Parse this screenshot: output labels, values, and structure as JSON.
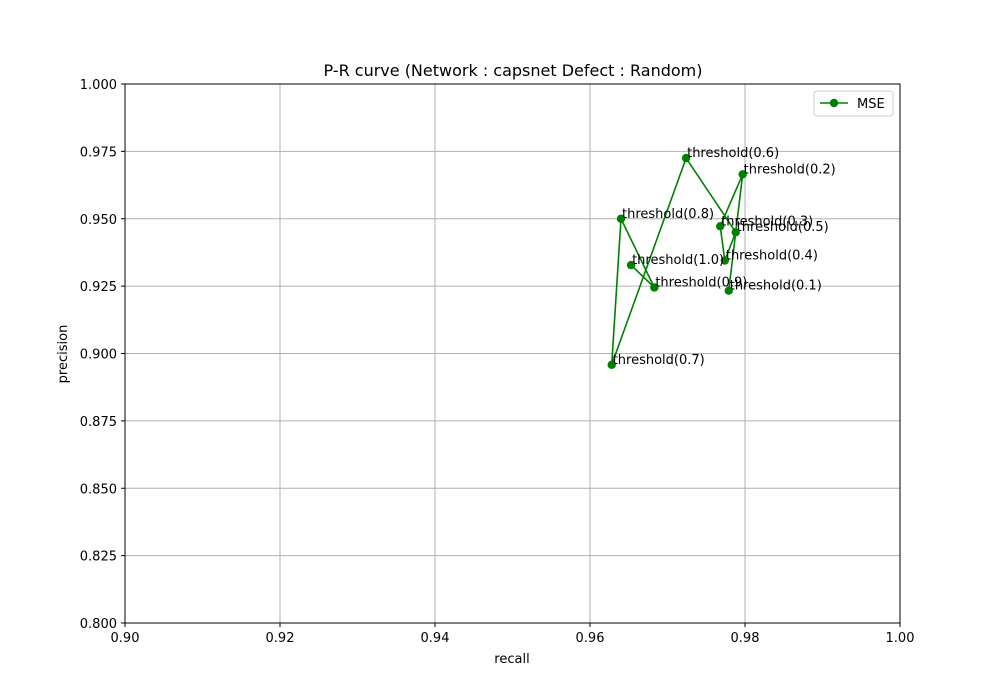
{
  "chart_data": {
    "type": "line",
    "title": "P-R curve (Network : capsnet Defect : Random)",
    "xlabel": "recall",
    "ylabel": "precision",
    "xlim": [
      0.9,
      1.0
    ],
    "ylim": [
      0.8,
      1.0
    ],
    "xticks": [
      "0.90",
      "0.92",
      "0.94",
      "0.96",
      "0.98",
      "1.00"
    ],
    "yticks": [
      "0.800",
      "0.825",
      "0.850",
      "0.875",
      "0.900",
      "0.925",
      "0.950",
      "0.975",
      "1.000"
    ],
    "grid": true,
    "legend_position": "top-right",
    "series": [
      {
        "name": "MSE",
        "color": "#008000",
        "marker": "circle",
        "points": [
          {
            "x": 0.9779,
            "y": 0.9233,
            "label": "threshold(0.1)"
          },
          {
            "x": 0.9797,
            "y": 0.9665,
            "label": "threshold(0.2)"
          },
          {
            "x": 0.9768,
            "y": 0.9472,
            "label": "threshold(0.3)"
          },
          {
            "x": 0.9774,
            "y": 0.9345,
            "label": "threshold(0.4)"
          },
          {
            "x": 0.9788,
            "y": 0.945,
            "label": "threshold(0.5)"
          },
          {
            "x": 0.9724,
            "y": 0.9725,
            "label": "threshold(0.6)"
          },
          {
            "x": 0.9628,
            "y": 0.8958,
            "label": "threshold(0.7)"
          },
          {
            "x": 0.964,
            "y": 0.95,
            "label": "threshold(0.8)"
          },
          {
            "x": 0.9683,
            "y": 0.9245,
            "label": "threshold(0.9)"
          },
          {
            "x": 0.9653,
            "y": 0.9328,
            "label": "threshold(1.0)"
          }
        ]
      }
    ]
  }
}
